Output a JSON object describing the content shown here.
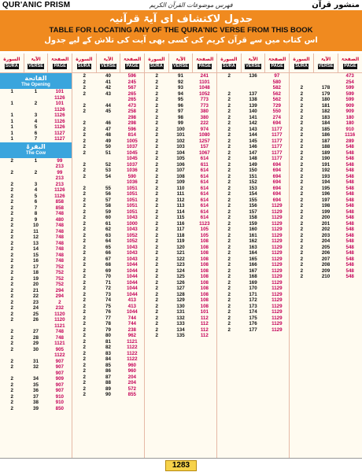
{
  "header": {
    "left_brand": "QUR'ANIC PRISM",
    "calligraphy": "فهرس موضوعات القرآن الكريم",
    "right_brand": "منشور قرآن"
  },
  "banner": {
    "title_urdu": "جدول لاکتشاف ای آیۃ قرآنیہ",
    "title_en": "TABLE FOR LOCATING ANY OF THE QURA'NIC VERSE FROM THIS BOOK",
    "subtitle_urdu": "اس کتاب میں سے قرآن کریم کی کسی بھی آیت کی تلاش کے لیے جدول"
  },
  "column_headers": {
    "sura_urdu": "السورة",
    "verse_urdu": "الآیۃ",
    "page_urdu": "الصفحۃ",
    "sura_en": "SURA",
    "verse_en": "VERSE",
    "page_en": "PAGE"
  },
  "section_labels": {
    "fatiha_urdu": "الفاتحة",
    "fatiha_en": "The Opening",
    "baqara_urdu": "البقرۃ",
    "baqara_en": "The Cow"
  },
  "columns": [
    {
      "rows_a": [
        [
          "1",
          "1",
          "101"
        ],
        [
          "",
          "",
          "1126"
        ],
        [
          "1",
          "2",
          "101"
        ],
        [
          "",
          "",
          "1126"
        ],
        [
          "1",
          "3",
          "1126"
        ],
        [
          "1",
          "4",
          "1126"
        ],
        [
          "1",
          "5",
          "1126"
        ],
        [
          "1",
          "6",
          "1127"
        ],
        [
          "1",
          "7",
          "1127"
        ]
      ],
      "rows_b": [
        [
          "2",
          "1",
          "99"
        ],
        [
          "",
          "",
          "213"
        ],
        [
          "2",
          "2",
          "99"
        ],
        [
          "",
          "",
          "213"
        ],
        [
          "2",
          "3",
          "213"
        ],
        [
          "2",
          "4",
          "1126"
        ],
        [
          "2",
          "5",
          "1126"
        ],
        [
          "2",
          "6",
          "858"
        ],
        [
          "2",
          "7",
          "858"
        ],
        [
          "2",
          "8",
          "748"
        ],
        [
          "2",
          "9",
          "480"
        ],
        [
          "2",
          "10",
          "748"
        ],
        [
          "2",
          "11",
          "748"
        ],
        [
          "2",
          "12",
          "748"
        ],
        [
          "2",
          "13",
          "748"
        ],
        [
          "2",
          "14",
          "748"
        ],
        [
          "2",
          "15",
          "748"
        ],
        [
          "2",
          "16",
          "748"
        ],
        [
          "2",
          "17",
          "752"
        ],
        [
          "2",
          "18",
          "752"
        ],
        [
          "2",
          "19",
          "752"
        ],
        [
          "2",
          "20",
          "752"
        ],
        [
          "2",
          "21",
          "294"
        ],
        [
          "2",
          "22",
          "294"
        ],
        [
          "2",
          "23",
          "2"
        ],
        [
          "2",
          "24",
          "232"
        ],
        [
          "2",
          "25",
          "1120"
        ],
        [
          "2",
          "26",
          "1120"
        ],
        [
          "",
          "",
          "1121"
        ],
        [
          "2",
          "27",
          "748"
        ],
        [
          "2",
          "28",
          "748"
        ],
        [
          "2",
          "29",
          "1121"
        ],
        [
          "2",
          "30",
          "905"
        ],
        [
          "",
          "",
          "1122"
        ],
        [
          "2",
          "31",
          "907"
        ],
        [
          "2",
          "32",
          "907"
        ],
        [
          "",
          "",
          "907"
        ],
        [
          "2",
          "34",
          "909"
        ],
        [
          "2",
          "35",
          "907"
        ],
        [
          "2",
          "36",
          "907"
        ],
        [
          "2",
          "37",
          "910"
        ],
        [
          "2",
          "38",
          "910"
        ],
        [
          "2",
          "39",
          "850"
        ]
      ]
    },
    {
      "rows": [
        [
          "2",
          "40",
          "596"
        ],
        [
          "2",
          "41",
          "245"
        ],
        [
          "2",
          "42",
          "567"
        ],
        [
          "2",
          "43",
          "265"
        ],
        [
          "",
          "",
          "265"
        ],
        [
          "2",
          "44",
          "473"
        ],
        [
          "2",
          "45",
          "258"
        ],
        [
          "",
          "",
          "298"
        ],
        [
          "2",
          "46",
          "298"
        ],
        [
          "2",
          "47",
          "596"
        ],
        [
          "2",
          "48",
          "814"
        ],
        [
          "2",
          "49",
          "1005"
        ],
        [
          "2",
          "50",
          "1037"
        ],
        [
          "2",
          "51",
          "1045"
        ],
        [
          "",
          "",
          "1045"
        ],
        [
          "2",
          "52",
          "1037"
        ],
        [
          "2",
          "53",
          "1036"
        ],
        [
          "2",
          "54",
          "590"
        ],
        [
          "",
          "",
          "1036"
        ],
        [
          "2",
          "55",
          "1051"
        ],
        [
          "2",
          "56",
          "1051"
        ],
        [
          "2",
          "57",
          "1051"
        ],
        [
          "2",
          "58",
          "1051"
        ],
        [
          "2",
          "59",
          "1051"
        ],
        [
          "2",
          "60",
          "1043"
        ],
        [
          "2",
          "61",
          "1000"
        ],
        [
          "2",
          "62",
          "1043"
        ],
        [
          "2",
          "63",
          "1052"
        ],
        [
          "2",
          "64",
          "1052"
        ],
        [
          "2",
          "65",
          "1043"
        ],
        [
          "2",
          "66",
          "1043"
        ],
        [
          "2",
          "67",
          "1043"
        ],
        [
          "2",
          "68",
          "1044"
        ],
        [
          "2",
          "69",
          "1044"
        ],
        [
          "2",
          "70",
          "1044"
        ],
        [
          "2",
          "71",
          "1044"
        ],
        [
          "2",
          "72",
          "1044"
        ],
        [
          "2",
          "73",
          "1044"
        ],
        [
          "2",
          "74",
          "413"
        ],
        [
          "2",
          "75",
          "413"
        ],
        [
          "2",
          "76",
          "1044"
        ],
        [
          "2",
          "77",
          "744"
        ],
        [
          "2",
          "78",
          "744"
        ],
        [
          "2",
          "79",
          "238"
        ],
        [
          "2",
          "80",
          "962"
        ],
        [
          "2",
          "81",
          "1121"
        ],
        [
          "2",
          "82",
          "1122"
        ],
        [
          "2",
          "83",
          "1122"
        ],
        [
          "2",
          "84",
          "1122"
        ],
        [
          "2",
          "85",
          "960"
        ],
        [
          "2",
          "86",
          "960"
        ],
        [
          "2",
          "87",
          "204"
        ],
        [
          "2",
          "88",
          "204"
        ],
        [
          "2",
          "89",
          "572"
        ],
        [
          "2",
          "90",
          "855"
        ]
      ]
    },
    {
      "rows": [
        [
          "2",
          "91",
          "241"
        ],
        [
          "2",
          "92",
          "1101"
        ],
        [
          "2",
          "93",
          "1048"
        ],
        [
          "2",
          "94",
          "1052"
        ],
        [
          "2",
          "95",
          "773"
        ],
        [
          "2",
          "96",
          "773"
        ],
        [
          "2",
          "97",
          "380"
        ],
        [
          "2",
          "98",
          "380"
        ],
        [
          "2",
          "99",
          "222"
        ],
        [
          "2",
          "100",
          "974"
        ],
        [
          "2",
          "101",
          "1080"
        ],
        [
          "2",
          "102",
          "1257"
        ],
        [
          "2",
          "103",
          "157"
        ],
        [
          "2",
          "104",
          "1067"
        ],
        [
          "2",
          "105",
          "614"
        ],
        [
          "2",
          "106",
          "611"
        ],
        [
          "2",
          "107",
          "614"
        ],
        [
          "2",
          "108",
          "614"
        ],
        [
          "2",
          "109",
          "614"
        ],
        [
          "2",
          "110",
          "614"
        ],
        [
          "2",
          "111",
          "614"
        ],
        [
          "2",
          "112",
          "614"
        ],
        [
          "2",
          "113",
          "614"
        ],
        [
          "2",
          "114",
          "614"
        ],
        [
          "2",
          "115",
          "614"
        ],
        [
          "2",
          "116",
          "1123"
        ],
        [
          "2",
          "117",
          "105"
        ],
        [
          "2",
          "118",
          "105"
        ],
        [
          "2",
          "119",
          "108"
        ],
        [
          "2",
          "120",
          "108"
        ],
        [
          "2",
          "121",
          "108"
        ],
        [
          "2",
          "122",
          "108"
        ],
        [
          "2",
          "123",
          "108"
        ],
        [
          "2",
          "124",
          "108"
        ],
        [
          "2",
          "125",
          "108"
        ],
        [
          "2",
          "126",
          "108"
        ],
        [
          "2",
          "127",
          "108"
        ],
        [
          "2",
          "128",
          "108"
        ],
        [
          "2",
          "129",
          "108"
        ],
        [
          "2",
          "130",
          "108"
        ],
        [
          "2",
          "131",
          "101"
        ],
        [
          "2",
          "132",
          "112"
        ],
        [
          "2",
          "133",
          "112"
        ],
        [
          "2",
          "134",
          "112"
        ],
        [
          "2",
          "135",
          "112"
        ]
      ]
    },
    {
      "rows": [
        [
          "2",
          "136",
          "97"
        ],
        [
          "",
          "",
          "580"
        ],
        [
          "",
          "",
          "582"
        ],
        [
          "2",
          "137",
          "562"
        ],
        [
          "2",
          "138",
          "562"
        ],
        [
          "2",
          "139",
          "729"
        ],
        [
          "2",
          "140",
          "550"
        ],
        [
          "2",
          "141",
          "274"
        ],
        [
          "2",
          "142",
          "694"
        ],
        [
          "2",
          "143",
          "1177"
        ],
        [
          "2",
          "144",
          "1177"
        ],
        [
          "2",
          "145",
          "1177"
        ],
        [
          "2",
          "146",
          "1177"
        ],
        [
          "2",
          "147",
          "1177"
        ],
        [
          "2",
          "148",
          "1177"
        ],
        [
          "2",
          "149",
          "694"
        ],
        [
          "2",
          "150",
          "694"
        ],
        [
          "2",
          "151",
          "694"
        ],
        [
          "2",
          "152",
          "694"
        ],
        [
          "2",
          "153",
          "694"
        ],
        [
          "2",
          "154",
          "694"
        ],
        [
          "2",
          "155",
          "694"
        ],
        [
          "2",
          "156",
          "1129"
        ],
        [
          "2",
          "157",
          "1129"
        ],
        [
          "2",
          "158",
          "1129"
        ],
        [
          "2",
          "159",
          "1129"
        ],
        [
          "2",
          "160",
          "1129"
        ],
        [
          "2",
          "161",
          "1129"
        ],
        [
          "2",
          "162",
          "1129"
        ],
        [
          "2",
          "163",
          "1129"
        ],
        [
          "2",
          "164",
          "1129"
        ],
        [
          "2",
          "165",
          "1129"
        ],
        [
          "2",
          "166",
          "1129"
        ],
        [
          "2",
          "167",
          "1129"
        ],
        [
          "2",
          "168",
          "1129"
        ],
        [
          "2",
          "169",
          "1129"
        ],
        [
          "2",
          "170",
          "1129"
        ],
        [
          "2",
          "171",
          "1129"
        ],
        [
          "2",
          "172",
          "1129"
        ],
        [
          "2",
          "173",
          "1129"
        ],
        [
          "2",
          "174",
          "1129"
        ],
        [
          "2",
          "175",
          "1129"
        ],
        [
          "2",
          "176",
          "1129"
        ],
        [
          "2",
          "177",
          "1129"
        ]
      ]
    },
    {
      "rows": [
        [
          "",
          "",
          "473"
        ],
        [
          "",
          "",
          "254"
        ],
        [
          "2",
          "178",
          "599"
        ],
        [
          "2",
          "179",
          "599"
        ],
        [
          "2",
          "180",
          "599"
        ],
        [
          "2",
          "181",
          "909"
        ],
        [
          "2",
          "182",
          "909"
        ],
        [
          "2",
          "183",
          "180"
        ],
        [
          "2",
          "184",
          "180"
        ],
        [
          "2",
          "185",
          "910"
        ],
        [
          "2",
          "186",
          "1116"
        ],
        [
          "2",
          "187",
          "289"
        ],
        [
          "2",
          "188",
          "548"
        ],
        [
          "2",
          "189",
          "548"
        ],
        [
          "2",
          "190",
          "548"
        ],
        [
          "2",
          "191",
          "548"
        ],
        [
          "2",
          "192",
          "548"
        ],
        [
          "2",
          "193",
          "548"
        ],
        [
          "2",
          "194",
          "548"
        ],
        [
          "2",
          "195",
          "548"
        ],
        [
          "2",
          "196",
          "548"
        ],
        [
          "2",
          "197",
          "548"
        ],
        [
          "2",
          "198",
          "548"
        ],
        [
          "2",
          "199",
          "548"
        ],
        [
          "2",
          "200",
          "548"
        ],
        [
          "2",
          "201",
          "548"
        ],
        [
          "2",
          "202",
          "548"
        ],
        [
          "2",
          "203",
          "548"
        ],
        [
          "2",
          "204",
          "548"
        ],
        [
          "2",
          "205",
          "548"
        ],
        [
          "2",
          "206",
          "548"
        ],
        [
          "2",
          "207",
          "548"
        ],
        [
          "2",
          "208",
          "548"
        ],
        [
          "2",
          "209",
          "548"
        ],
        [
          "2",
          "210",
          "548"
        ]
      ]
    }
  ],
  "footer": {
    "page_number": "1283"
  }
}
